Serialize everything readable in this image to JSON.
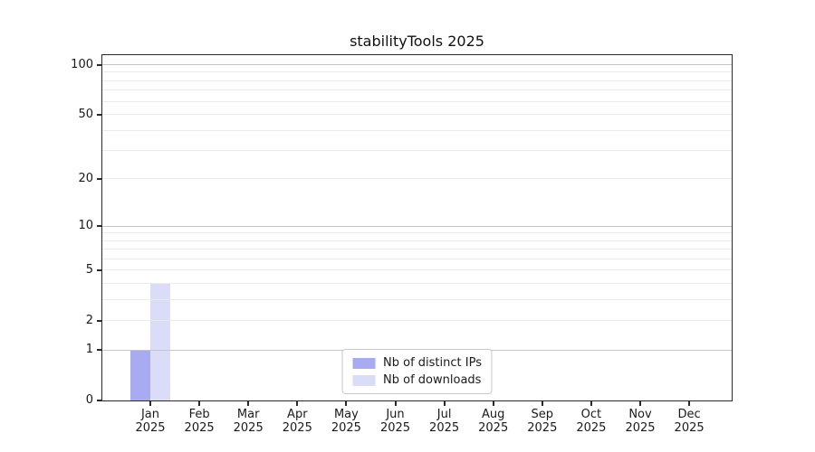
{
  "figure": {
    "background": "#ffffff"
  },
  "chart_data": {
    "type": "bar",
    "title": "stabilityTools 2025",
    "x": {
      "months": [
        "Jan",
        "Feb",
        "Mar",
        "Apr",
        "May",
        "Jun",
        "Jul",
        "Aug",
        "Sep",
        "Oct",
        "Nov",
        "Dec"
      ],
      "year": "2025"
    },
    "y_axis": {
      "scale": "log1p",
      "ticks": [
        0,
        1,
        2,
        5,
        10,
        20,
        50,
        100
      ],
      "major_gridlines": [
        1,
        10,
        100
      ],
      "minor_gridlines": [
        2,
        3,
        4,
        5,
        6,
        7,
        8,
        9,
        20,
        30,
        40,
        50,
        60,
        70,
        80,
        90
      ],
      "ylim": [
        0,
        114
      ],
      "grid": "on"
    },
    "series": [
      {
        "name": "Nb of distinct IPs",
        "color": "#a9abf2",
        "values": [
          1,
          0,
          0,
          0,
          0,
          0,
          0,
          0,
          0,
          0,
          0,
          0
        ]
      },
      {
        "name": "Nb of downloads",
        "color": "#dadcf8",
        "values": [
          4,
          0,
          0,
          0,
          0,
          0,
          0,
          0,
          0,
          0,
          0,
          0
        ]
      }
    ],
    "legend": {
      "position": "lower center"
    }
  }
}
